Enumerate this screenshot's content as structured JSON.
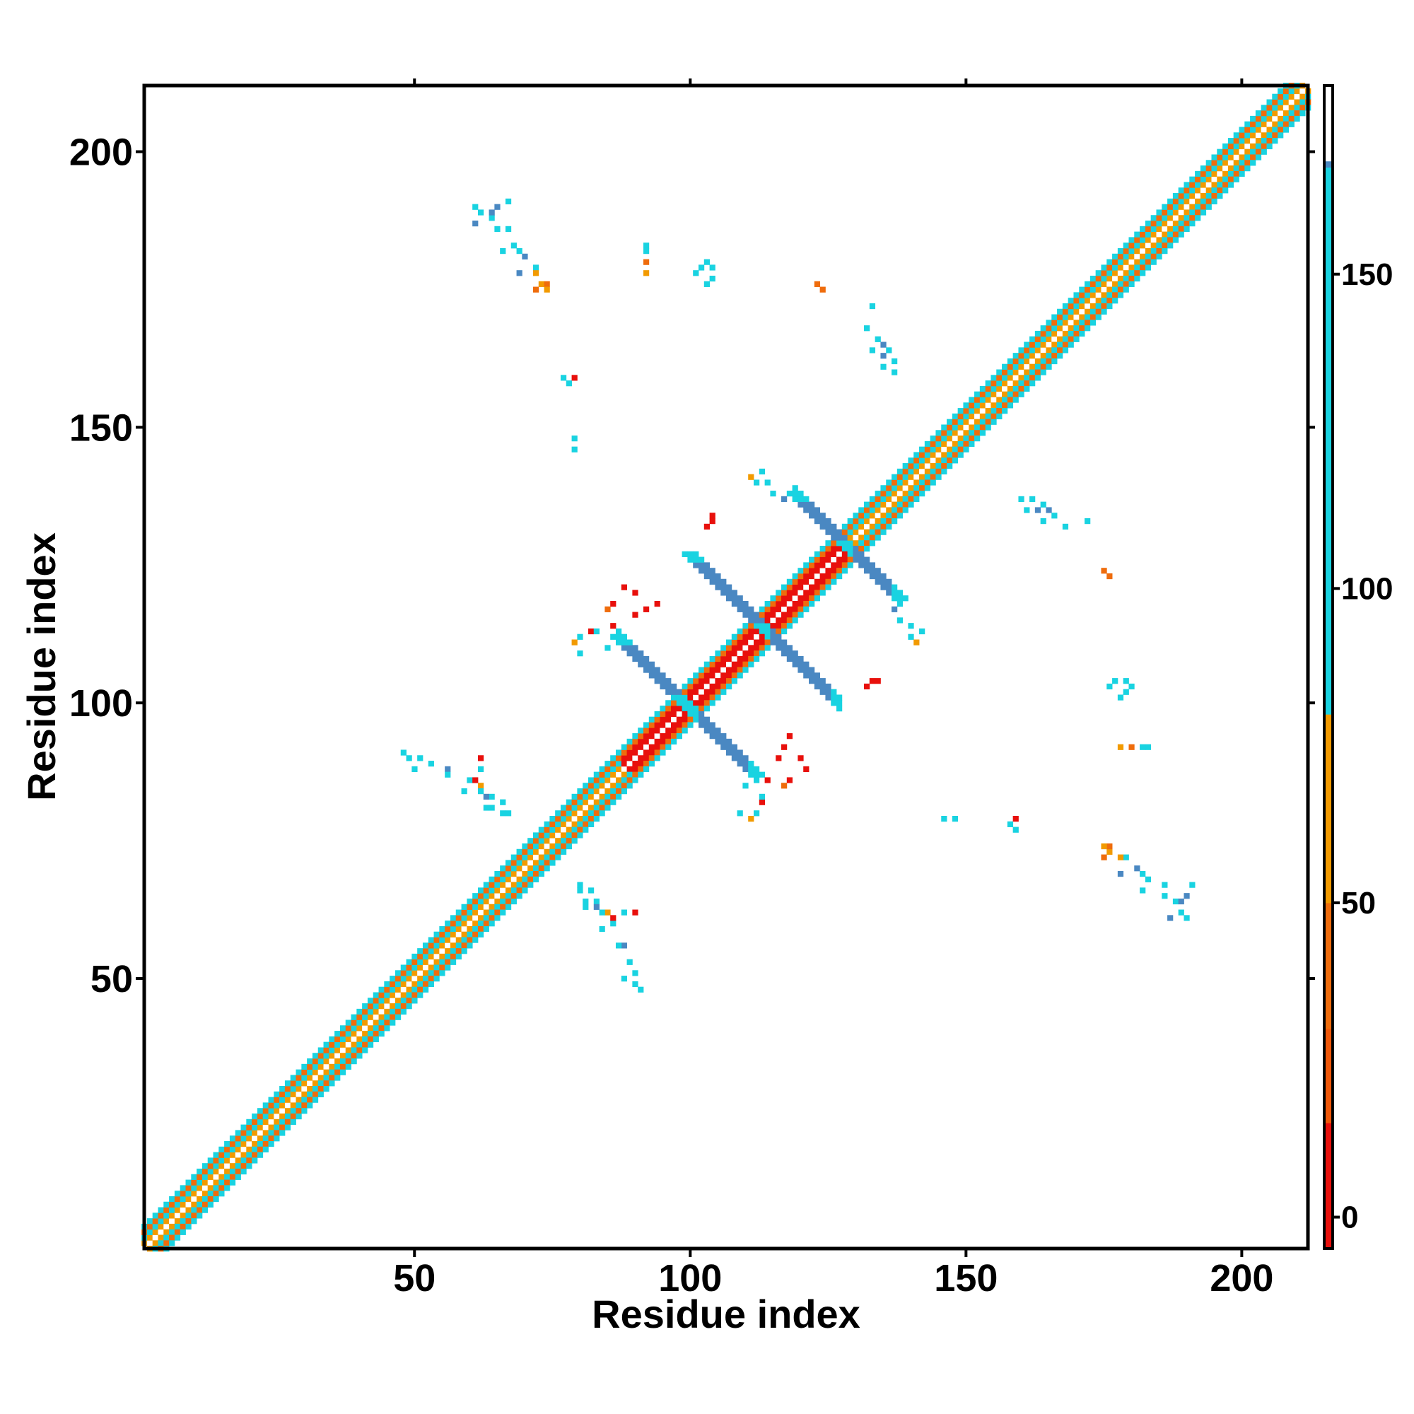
{
  "chart_data": {
    "type": "heatmap",
    "title": "",
    "xlabel": "Residue index",
    "ylabel": "Residue index",
    "xlim": [
      1,
      212
    ],
    "ylim": [
      1,
      212
    ],
    "x_ticks": [
      50,
      100,
      150,
      200
    ],
    "y_ticks": [
      50,
      100,
      150,
      200
    ],
    "x_tick_labels": [
      "50",
      "100",
      "150",
      "200"
    ],
    "y_tick_labels": [
      "50",
      "100",
      "150",
      "200"
    ],
    "symmetric": true,
    "colorbar": {
      "range": [
        -5,
        180
      ],
      "ticks": [
        0,
        50,
        100,
        150
      ],
      "tick_labels": [
        "0",
        "50",
        "100",
        "150"
      ],
      "bins": [
        {
          "from": -5,
          "to": 15,
          "color": "#e8100c"
        },
        {
          "from": 15,
          "to": 30,
          "color": "#f0580a"
        },
        {
          "from": 30,
          "to": 50,
          "color": "#ef6c0c"
        },
        {
          "from": 50,
          "to": 80,
          "color": "#f29a00"
        },
        {
          "from": 80,
          "to": 167,
          "color": "#19d3e1"
        },
        {
          "from": 167,
          "to": 168,
          "color": "#4a88c2"
        },
        {
          "from": 168,
          "to": 180,
          "color": "#ffffff"
        }
      ]
    },
    "diagonal_band": {
      "from_residue": 1,
      "to_residue": 212,
      "halfwidth": 4
    },
    "diagonal_profile": [
      {
        "offset": 0,
        "color": "#ffffff"
      },
      {
        "offset": 1,
        "color": "#f29a00"
      },
      {
        "offset": 2,
        "color": "#19d3e1"
      },
      {
        "offset": 3,
        "color": "#ef6c0c"
      },
      {
        "offset": 4,
        "color": "#19d3e1"
      }
    ],
    "helix_diagonal_segments": [
      {
        "from": 88,
        "to": 128,
        "color": "#e8100c"
      }
    ],
    "antiparallel_strands": [
      {
        "i_from": 87,
        "i_to": 100,
        "j_from": 112,
        "j_to": 99,
        "color": "#4a88c2"
      },
      {
        "i_from": 100,
        "i_to": 112,
        "j_from": 99,
        "j_to": 86,
        "color": "#4a88c2"
      },
      {
        "i_from": 101,
        "i_to": 113,
        "j_from": 126,
        "j_to": 114,
        "color": "#4a88c2"
      },
      {
        "i_from": 113,
        "i_to": 127,
        "j_from": 114,
        "j_to": 100,
        "color": "#4a88c2"
      },
      {
        "i_from": 119,
        "i_to": 128,
        "j_from": 138,
        "j_to": 129,
        "color": "#4a88c2"
      },
      {
        "i_from": 128,
        "i_to": 138,
        "j_from": 129,
        "j_to": 120,
        "color": "#4a88c2"
      }
    ],
    "contact_clusters": [
      {
        "x": 62,
        "y": 189,
        "color": "#19d3e1"
      },
      {
        "x": 64,
        "y": 188,
        "color": "#19d3e1"
      },
      {
        "x": 65,
        "y": 190,
        "color": "#4a88c2"
      },
      {
        "x": 67,
        "y": 186,
        "color": "#19d3e1"
      },
      {
        "x": 68,
        "y": 183,
        "color": "#19d3e1"
      },
      {
        "x": 70,
        "y": 181,
        "color": "#4a88c2"
      },
      {
        "x": 72,
        "y": 179,
        "color": "#19d3e1"
      },
      {
        "x": 73,
        "y": 176,
        "color": "#f29a00"
      },
      {
        "x": 74,
        "y": 176,
        "color": "#ef6c0c"
      },
      {
        "x": 92,
        "y": 183,
        "color": "#19d3e1"
      },
      {
        "x": 92,
        "y": 180,
        "color": "#ef6c0c"
      },
      {
        "x": 103,
        "y": 180,
        "color": "#19d3e1"
      },
      {
        "x": 104,
        "y": 179,
        "color": "#19d3e1"
      },
      {
        "x": 104,
        "y": 177,
        "color": "#19d3e1"
      },
      {
        "x": 123,
        "y": 176,
        "color": "#ef6c0c"
      },
      {
        "x": 133,
        "y": 172,
        "color": "#19d3e1"
      },
      {
        "x": 134,
        "y": 166,
        "color": "#19d3e1"
      },
      {
        "x": 135,
        "y": 165,
        "color": "#4a88c2"
      },
      {
        "x": 136,
        "y": 164,
        "color": "#19d3e1"
      },
      {
        "x": 137,
        "y": 162,
        "color": "#19d3e1"
      },
      {
        "x": 77,
        "y": 159,
        "color": "#19d3e1"
      },
      {
        "x": 78,
        "y": 158,
        "color": "#19d3e1"
      },
      {
        "x": 79,
        "y": 159,
        "color": "#e8100c"
      },
      {
        "x": 79,
        "y": 148,
        "color": "#19d3e1"
      },
      {
        "x": 113,
        "y": 142,
        "color": "#19d3e1"
      },
      {
        "x": 114,
        "y": 140,
        "color": "#19d3e1"
      },
      {
        "x": 115,
        "y": 138,
        "color": "#19d3e1"
      },
      {
        "x": 117,
        "y": 137,
        "color": "#4a88c2"
      },
      {
        "x": 104,
        "y": 134,
        "color": "#e8100c"
      },
      {
        "x": 103,
        "y": 132,
        "color": "#e8100c"
      },
      {
        "x": 160,
        "y": 137,
        "color": "#19d3e1"
      },
      {
        "x": 161,
        "y": 135,
        "color": "#19d3e1"
      },
      {
        "x": 163,
        "y": 135,
        "color": "#4a88c2"
      },
      {
        "x": 164,
        "y": 133,
        "color": "#19d3e1"
      },
      {
        "x": 168,
        "y": 132,
        "color": "#19d3e1"
      },
      {
        "x": 175,
        "y": 124,
        "color": "#ef6c0c"
      },
      {
        "x": 88,
        "y": 121,
        "color": "#e8100c"
      },
      {
        "x": 90,
        "y": 120,
        "color": "#e8100c"
      },
      {
        "x": 86,
        "y": 118,
        "color": "#e8100c"
      },
      {
        "x": 85,
        "y": 117,
        "color": "#ef6c0c"
      },
      {
        "x": 82,
        "y": 113,
        "color": "#e8100c"
      },
      {
        "x": 80,
        "y": 112,
        "color": "#19d3e1"
      },
      {
        "x": 79,
        "y": 111,
        "color": "#f29a00"
      },
      {
        "x": 80,
        "y": 109,
        "color": "#19d3e1"
      },
      {
        "x": 140,
        "y": 112,
        "color": "#19d3e1"
      },
      {
        "x": 141,
        "y": 111,
        "color": "#f29a00"
      },
      {
        "x": 133,
        "y": 104,
        "color": "#e8100c"
      },
      {
        "x": 132,
        "y": 103,
        "color": "#e8100c"
      },
      {
        "x": 176,
        "y": 103,
        "color": "#19d3e1"
      },
      {
        "x": 178,
        "y": 101,
        "color": "#19d3e1"
      },
      {
        "x": 179,
        "y": 102,
        "color": "#19d3e1"
      },
      {
        "x": 178,
        "y": 92,
        "color": "#f29a00"
      },
      {
        "x": 182,
        "y": 92,
        "color": "#19d3e1"
      },
      {
        "x": 118,
        "y": 94,
        "color": "#e8100c"
      },
      {
        "x": 117,
        "y": 92,
        "color": "#e8100c"
      },
      {
        "x": 116,
        "y": 90,
        "color": "#e8100c"
      },
      {
        "x": 114,
        "y": 86,
        "color": "#e8100c"
      },
      {
        "x": 110,
        "y": 85,
        "color": "#19d3e1"
      },
      {
        "x": 113,
        "y": 83,
        "color": "#19d3e1"
      },
      {
        "x": 48,
        "y": 91,
        "color": "#19d3e1"
      },
      {
        "x": 51,
        "y": 90,
        "color": "#19d3e1"
      },
      {
        "x": 53,
        "y": 89,
        "color": "#19d3e1"
      },
      {
        "x": 56,
        "y": 88,
        "color": "#4a88c2"
      },
      {
        "x": 62,
        "y": 90,
        "color": "#e8100c"
      },
      {
        "x": 60,
        "y": 86,
        "color": "#19d3e1"
      },
      {
        "x": 62,
        "y": 85,
        "color": "#4a88c2"
      },
      {
        "x": 64,
        "y": 83,
        "color": "#19d3e1"
      },
      {
        "x": 64,
        "y": 81,
        "color": "#19d3e1"
      },
      {
        "x": 66,
        "y": 80,
        "color": "#19d3e1"
      },
      {
        "x": 146,
        "y": 79,
        "color": "#19d3e1"
      },
      {
        "x": 159,
        "y": 79,
        "color": "#e8100c"
      },
      {
        "x": 159,
        "y": 77,
        "color": "#19d3e1"
      },
      {
        "x": 175,
        "y": 74,
        "color": "#f29a00"
      },
      {
        "x": 175,
        "y": 72,
        "color": "#ef6c0c"
      },
      {
        "x": 178,
        "y": 72,
        "color": "#f29a00"
      },
      {
        "x": 178,
        "y": 69,
        "color": "#4a88c2"
      },
      {
        "x": 182,
        "y": 69,
        "color": "#19d3e1"
      },
      {
        "x": 182,
        "y": 66,
        "color": "#19d3e1"
      },
      {
        "x": 186,
        "y": 65,
        "color": "#19d3e1"
      },
      {
        "x": 189,
        "y": 64,
        "color": "#4a88c2"
      },
      {
        "x": 191,
        "y": 67,
        "color": "#19d3e1"
      },
      {
        "x": 187,
        "y": 61,
        "color": "#4a88c2"
      },
      {
        "x": 190,
        "y": 61,
        "color": "#19d3e1"
      },
      {
        "x": 80,
        "y": 67,
        "color": "#19d3e1"
      },
      {
        "x": 82,
        "y": 66,
        "color": "#19d3e1"
      },
      {
        "x": 81,
        "y": 63,
        "color": "#19d3e1"
      },
      {
        "x": 83,
        "y": 63,
        "color": "#4a88c2"
      },
      {
        "x": 84,
        "y": 62,
        "color": "#19d3e1"
      },
      {
        "x": 85,
        "y": 62,
        "color": "#f29a00"
      },
      {
        "x": 86,
        "y": 61,
        "color": "#e8100c"
      },
      {
        "x": 88,
        "y": 62,
        "color": "#19d3e1"
      },
      {
        "x": 84,
        "y": 59,
        "color": "#19d3e1"
      },
      {
        "x": 87,
        "y": 56,
        "color": "#19d3e1"
      },
      {
        "x": 89,
        "y": 53,
        "color": "#19d3e1"
      },
      {
        "x": 88,
        "y": 50,
        "color": "#19d3e1"
      },
      {
        "x": 90,
        "y": 49,
        "color": "#19d3e1"
      }
    ]
  }
}
